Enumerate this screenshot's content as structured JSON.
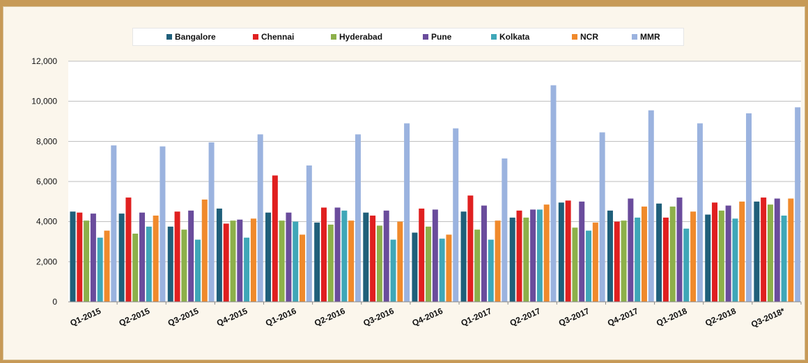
{
  "chart_data": {
    "type": "bar",
    "categories": [
      "Q1-2015",
      "Q2-2015",
      "Q3-2015",
      "Q4-2015",
      "Q1-2016",
      "Q2-2016",
      "Q3-2016",
      "Q4-2016",
      "Q1-2017",
      "Q2-2017",
      "Q3-2017",
      "Q4-2017",
      "Q1-2018",
      "Q2-2018",
      "Q3-2018*"
    ],
    "series": [
      {
        "name": "Bangalore",
        "color": "#1f5f7a",
        "values": [
          4500,
          4400,
          3750,
          4650,
          4450,
          3950,
          4450,
          3450,
          4500,
          4200,
          4950,
          4550,
          4900,
          4350,
          5000
        ]
      },
      {
        "name": "Chennai",
        "color": "#e02020",
        "values": [
          4450,
          5200,
          4500,
          3900,
          6300,
          4700,
          4300,
          4650,
          5300,
          4550,
          5050,
          4000,
          4200,
          4950,
          5200
        ]
      },
      {
        "name": "Hyderabad",
        "color": "#8db04a",
        "values": [
          4050,
          3400,
          3600,
          4050,
          4050,
          3850,
          3800,
          3750,
          3600,
          4200,
          3700,
          4050,
          4750,
          4550,
          4850
        ]
      },
      {
        "name": "Pune",
        "color": "#6a4c9c",
        "values": [
          4400,
          4450,
          4550,
          4100,
          4450,
          4700,
          4550,
          4600,
          4800,
          4600,
          5000,
          5150,
          5200,
          4800,
          5150
        ]
      },
      {
        "name": "Kolkata",
        "color": "#3fa7b8",
        "values": [
          3200,
          3750,
          3100,
          3200,
          4000,
          4550,
          3100,
          3150,
          3100,
          4600,
          3550,
          4200,
          3650,
          4150,
          4300
        ]
      },
      {
        "name": "NCR",
        "color": "#f08a2c",
        "values": [
          3550,
          4300,
          5100,
          4150,
          3350,
          4050,
          4000,
          3350,
          4050,
          4850,
          3950,
          4750,
          4500,
          5000,
          5150
        ]
      },
      {
        "name": "MMR",
        "color": "#9bb3df",
        "values": [
          7800,
          7750,
          7950,
          8350,
          6800,
          8350,
          8900,
          8650,
          7150,
          10800,
          8450,
          9550,
          8900,
          9400,
          9700
        ]
      }
    ],
    "ylim": [
      0,
      12000
    ],
    "yticks": [
      "0",
      "2,000",
      "4,000",
      "6,000",
      "8,000",
      "10,000",
      "12,000"
    ],
    "grid": true,
    "legend_position": "top"
  }
}
